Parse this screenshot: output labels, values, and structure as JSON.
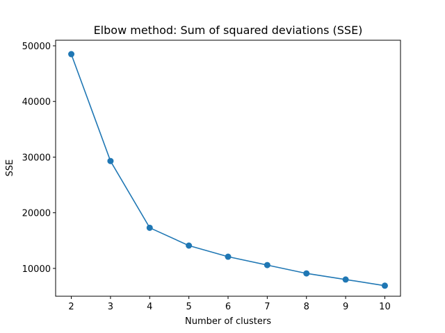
{
  "chart_data": {
    "type": "line",
    "title": "Elbow method: Sum of squared deviations (SSE)",
    "xlabel": "Number of clusters",
    "ylabel": "SSE",
    "x": [
      2,
      3,
      4,
      5,
      6,
      7,
      8,
      9,
      10
    ],
    "series": [
      {
        "values": [
          48500,
          29300,
          17300,
          14100,
          12100,
          10600,
          9100,
          8000,
          6900
        ],
        "color": "#1f77b4",
        "marker": "circle"
      }
    ],
    "xlim": [
      1.6,
      10.4
    ],
    "ylim": [
      5000,
      51000
    ],
    "xticks": [
      2,
      3,
      4,
      5,
      6,
      7,
      8,
      9,
      10
    ],
    "yticks": [
      10000,
      20000,
      30000,
      40000,
      50000
    ],
    "grid": false,
    "legend": false
  }
}
